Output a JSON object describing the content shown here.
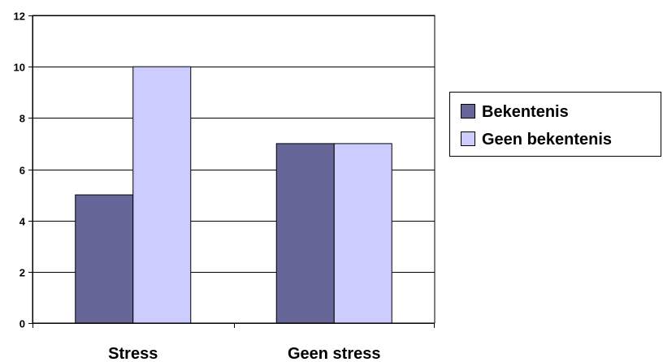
{
  "chart_data": {
    "type": "bar",
    "title": "",
    "xlabel": "",
    "ylabel": "",
    "categories": [
      "Stress",
      "Geen stress"
    ],
    "series": [
      {
        "name": "Bekentenis",
        "values": [
          5,
          7
        ],
        "color": "#666699"
      },
      {
        "name": "Geen bekentenis",
        "values": [
          10,
          7
        ],
        "color": "#ccccff"
      }
    ],
    "ylim": [
      0,
      12
    ],
    "yticks": [
      "0",
      "2",
      "4",
      "6",
      "8",
      "10",
      "12"
    ],
    "grid": true,
    "legend_position": "right"
  }
}
